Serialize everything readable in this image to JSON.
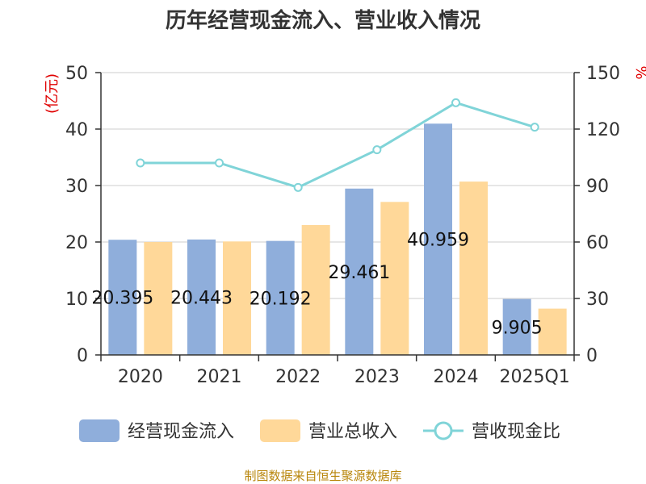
{
  "chart_data": {
    "type": "bar",
    "title": "历年经营现金流入、营业收入情况",
    "categories": [
      "2020",
      "2021",
      "2022",
      "2023",
      "2024",
      "2025Q1"
    ],
    "left_axis": {
      "unit": "(亿元)",
      "ylim": [
        0,
        50
      ],
      "ticks": [
        "0",
        "10",
        "20",
        "30",
        "40",
        "50"
      ]
    },
    "right_axis": {
      "unit": "%",
      "ylim": [
        0,
        150
      ],
      "ticks": [
        "0",
        "30",
        "60",
        "90",
        "120",
        "150"
      ]
    },
    "series": [
      {
        "name": "经营现金流入",
        "kind": "bar",
        "axis": "left",
        "color": "#8faedb",
        "values": [
          20.395,
          20.443,
          20.192,
          29.461,
          40.959,
          9.905
        ],
        "labels": [
          "20.395",
          "20.443",
          "20.192",
          "29.461",
          "40.959",
          "9.905"
        ]
      },
      {
        "name": "营业总收入",
        "kind": "bar",
        "axis": "left",
        "color": "#ffd899",
        "values": [
          20.0,
          20.1,
          23.0,
          27.1,
          30.7,
          8.2
        ]
      },
      {
        "name": "营收现金比",
        "kind": "line",
        "axis": "right",
        "color": "#80d4d8",
        "values": [
          102,
          102,
          89,
          109,
          134,
          121
        ]
      }
    ],
    "grid": true,
    "legend": "bottom"
  },
  "source": "制图数据来自恒生聚源数据库"
}
